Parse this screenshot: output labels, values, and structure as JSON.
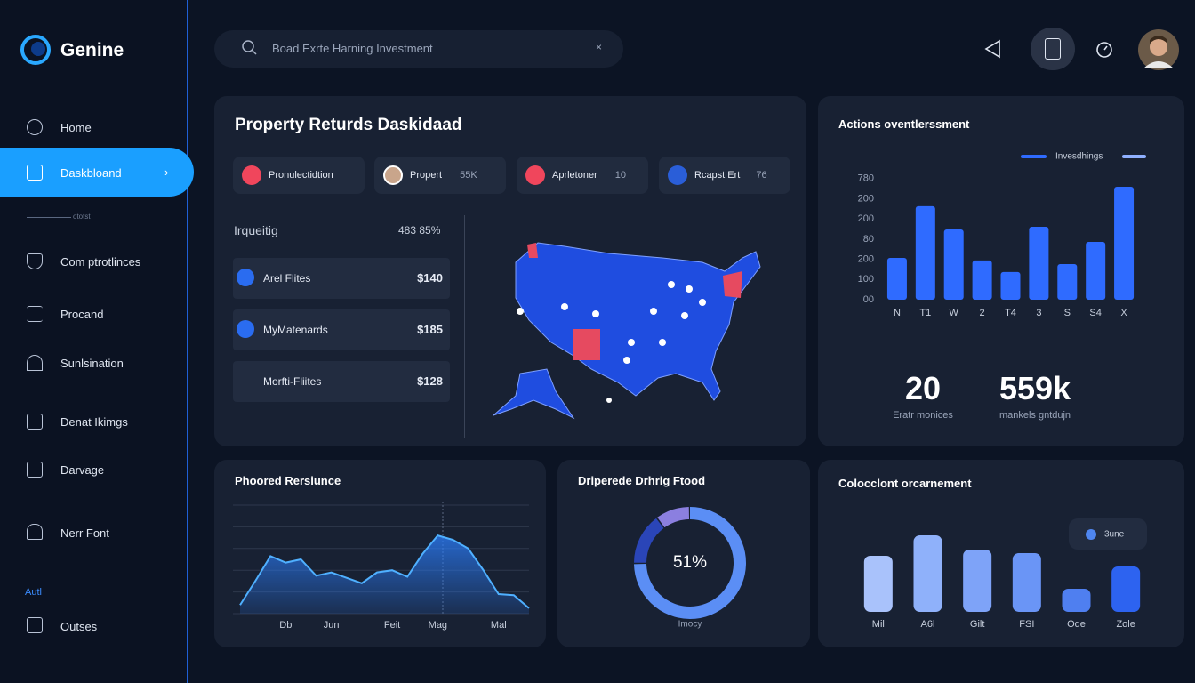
{
  "sidebar": {
    "brand": "Genine",
    "nav": [
      "Home",
      "Daskbloand",
      "Com ptrotlinces",
      "Procand",
      "Sunlsination",
      "Denat Ikimgs",
      "Darvage",
      "Nerr Font"
    ],
    "divider": "ototst",
    "section": "Autl",
    "footer_nav": "Outses"
  },
  "search": {
    "placeholder": "Boad Exrte Harning Investment"
  },
  "property_card": {
    "title": "Property Returds Daskidaad",
    "chips": [
      {
        "label": "Pronulectidtion"
      },
      {
        "label": "Propert",
        "value": "55K"
      },
      {
        "label": "Aprletoner",
        "value": "10"
      },
      {
        "label": "Rcapst Ert",
        "value": "76"
      }
    ],
    "list_header": {
      "label": "Irqueitig",
      "value": "483 85%"
    },
    "rows": [
      {
        "label": "Arel Flites",
        "value": "$140"
      },
      {
        "label": "MyMatenards",
        "value": "$185"
      },
      {
        "label": "Morfti-Fliites",
        "value": "$128"
      }
    ]
  },
  "summary": [
    {
      "value": "20",
      "label": "Eratr monices"
    },
    {
      "value": "559k",
      "label": "mankels gntdujn"
    }
  ],
  "chart_data": [
    {
      "type": "bar",
      "title": "Actions oventlerssment",
      "categories": [
        "N",
        "T1",
        "W",
        "2",
        "T4",
        "3",
        "S",
        "S4",
        "X"
      ],
      "series": [
        {
          "name": "Invesdhings",
          "color": "#2f6bff",
          "values": [
            207,
            463,
            348,
            194,
            137,
            361,
            176,
            286,
            559
          ]
        }
      ],
      "ylim": [
        0,
        700
      ],
      "yticks": [
        {
          "value": 0,
          "label": "00"
        },
        100,
        200,
        {
          "value": 300,
          "label": "80"
        },
        {
          "value": 400,
          "label": "200"
        },
        {
          "value": 500,
          "label": "200"
        },
        {
          "value": 600,
          "label": "780"
        }
      ],
      "legend": "top-right"
    },
    {
      "type": "area",
      "title": "Phoored Rersiunce",
      "categories": [
        null,
        null,
        null,
        "Db",
        null,
        null,
        "Jun",
        null,
        null,
        null,
        "Feit",
        null,
        null,
        "Mag",
        null,
        null,
        null,
        "Mal",
        null,
        null
      ],
      "series": [
        {
          "name": null,
          "color": "#2b7fff",
          "values": [
            8,
            30,
            53,
            47,
            50,
            35,
            38,
            33,
            28,
            38,
            40,
            34,
            55,
            72,
            68,
            60,
            40,
            18,
            17,
            5
          ]
        }
      ],
      "ylim": [
        0,
        100
      ],
      "grid": true
    },
    {
      "type": "donut",
      "title": "Driperede Drhrig Ftood",
      "center_label": "51%",
      "caption": "Imocy",
      "values": [
        75,
        15,
        10
      ],
      "colors": [
        "#5b8ef5",
        "#2a45b8",
        "#8b7fe0"
      ]
    },
    {
      "type": "bar",
      "title": "Colocclont orcarnement",
      "categories": [
        "Mil",
        "A6l",
        "Gilt",
        "FSI",
        "Ode",
        "Zole"
      ],
      "series": [
        {
          "name": "3une",
          "color": "#4f86f0",
          "values": [
            63,
            86,
            70,
            66,
            26,
            51
          ]
        }
      ],
      "colors": [
        "#a9c2fb",
        "#8fb1fa",
        "#7ea3f8",
        "#6a95f6",
        "#4f7ff0",
        "#2d63f0"
      ],
      "ylim": [
        0,
        100
      ],
      "legend": "top-right"
    }
  ]
}
